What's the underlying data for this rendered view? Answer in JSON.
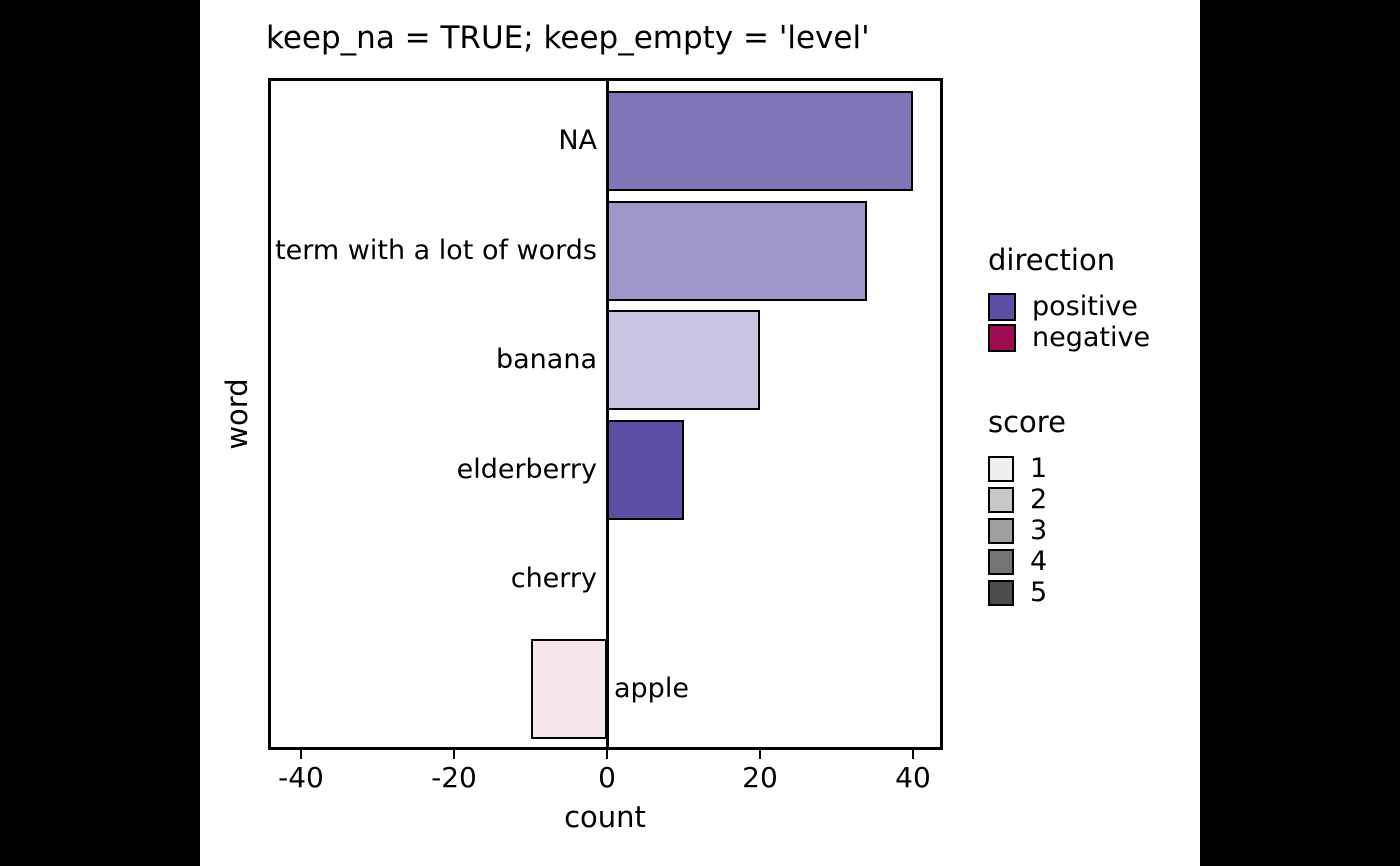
{
  "chart_data": {
    "type": "bar",
    "orientation": "horizontal",
    "title": "keep_na = TRUE; keep_empty = 'level'",
    "xlabel": "count",
    "ylabel": "word",
    "grid": false,
    "xlim": [
      -44,
      44
    ],
    "x_ticks": [
      -40,
      -20,
      0,
      20,
      40
    ],
    "categories": [
      "NA",
      "term with a lot of words",
      "banana",
      "elderberry",
      "cherry",
      "apple"
    ],
    "values": [
      40,
      34,
      20,
      10,
      0,
      -10
    ],
    "bar_colors": [
      "#8076b6",
      "#9f96c9",
      "#cbc5e4",
      "#5b4fa5",
      null,
      "#f6e6ee"
    ],
    "bar_border_color": "#000000",
    "zero_line_color": "#000000",
    "legend_position": "right",
    "legends": [
      {
        "title": "direction",
        "entries": [
          {
            "label": "positive",
            "color": "#5b4fa5"
          },
          {
            "label": "negative",
            "color": "#9e0d52"
          }
        ]
      },
      {
        "title": "score",
        "entries": [
          {
            "label": "1",
            "color": "#efefef"
          },
          {
            "label": "2",
            "color": "#c8c8c8"
          },
          {
            "label": "3",
            "color": "#9f9f9f"
          },
          {
            "label": "4",
            "color": "#747474"
          },
          {
            "label": "5",
            "color": "#4c4c4c"
          }
        ]
      }
    ]
  }
}
